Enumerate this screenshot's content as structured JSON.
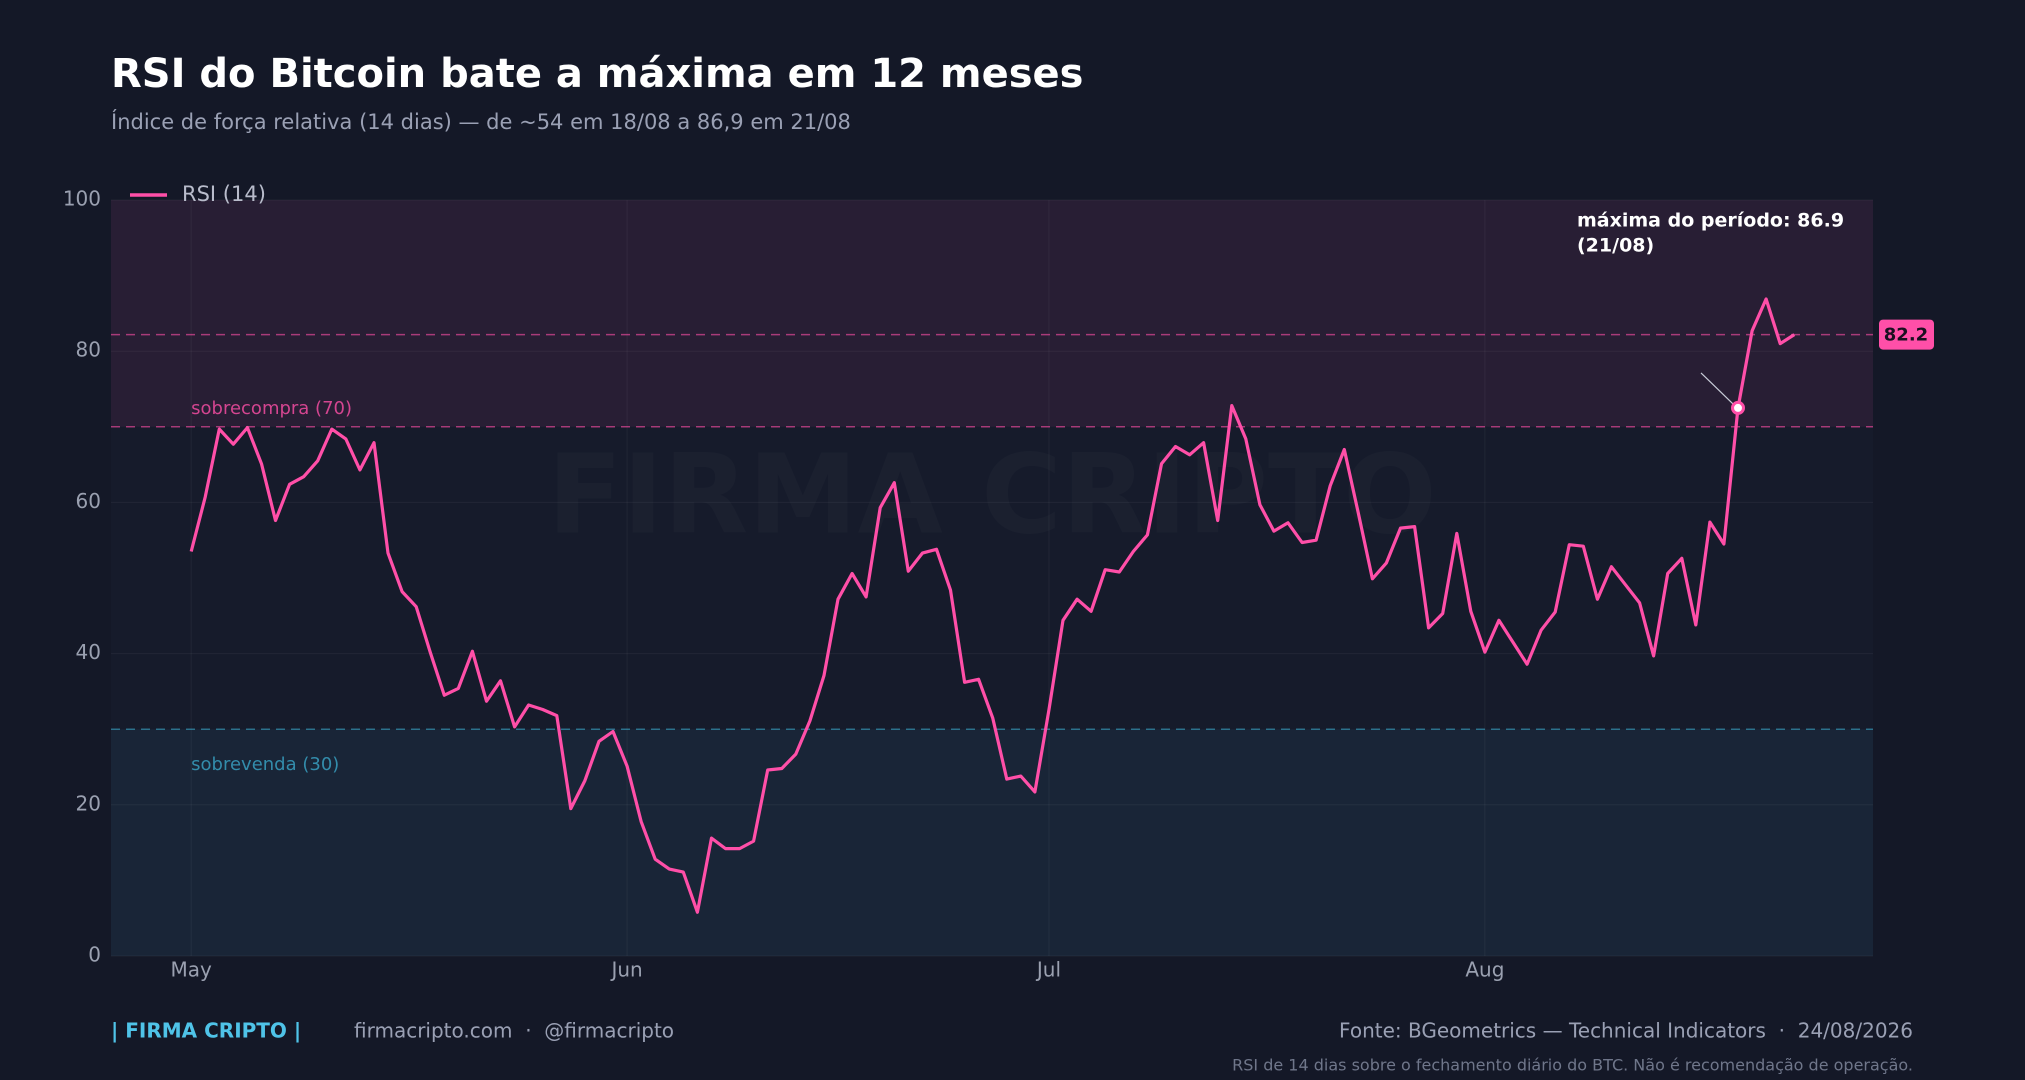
{
  "chart_data": {
    "type": "line",
    "title": "RSI do Bitcoin bate a máxima em 12 meses",
    "subtitle": "Índice de força relativa (14 dias) — de ~54 em 18/08 a 86,9 em 21/08",
    "watermark": "FIRMA CRIPTO",
    "series": [
      {
        "name": "RSI (14)",
        "color": "#ff4fa8",
        "values": [
          53.5,
          60.7,
          69.7,
          67.7,
          69.9,
          65.1,
          57.6,
          62.4,
          63.4,
          65.5,
          69.7,
          68.4,
          64.3,
          67.9,
          53.3,
          48.2,
          46.2,
          40.2,
          34.5,
          35.4,
          40.3,
          33.7,
          36.4,
          30.3,
          33.2,
          32.6,
          31.8,
          19.5,
          23.2,
          28.4,
          29.7,
          25.1,
          17.8,
          12.8,
          11.5,
          11.1,
          5.8,
          15.6,
          14.2,
          14.2,
          15.2,
          24.6,
          24.8,
          26.7,
          31.1,
          37.1,
          47.2,
          50.6,
          47.5,
          59.3,
          62.6,
          50.9,
          53.3,
          53.8,
          48.4,
          36.2,
          36.6,
          31.5,
          23.4,
          23.8,
          21.7,
          32.6,
          44.4,
          47.2,
          45.6,
          51.1,
          50.8,
          53.5,
          55.7,
          65.1,
          67.4,
          66.3,
          67.9,
          57.6,
          72.8,
          68.4,
          59.7,
          56.2,
          57.3,
          54.7,
          55.0,
          62.2,
          67.0,
          58.6,
          49.9,
          52.0,
          56.6,
          56.8,
          43.4,
          45.3,
          55.9,
          45.6,
          40.2,
          44.4,
          41.5,
          38.6,
          43.1,
          45.5,
          54.4,
          54.2,
          47.2,
          51.5,
          49.1,
          46.7,
          39.7,
          50.6,
          52.6,
          43.8,
          57.4,
          54.5,
          72.5,
          82.7,
          86.9,
          81.0,
          82.2
        ]
      }
    ],
    "xlim": [
      -5.7,
      119.6
    ],
    "xticks": [
      {
        "value": 0,
        "label": "May"
      },
      {
        "value": 31,
        "label": "Jun"
      },
      {
        "value": 61,
        "label": "Jul"
      },
      {
        "value": 92,
        "label": "Aug"
      }
    ],
    "ylim": [
      0,
      100
    ],
    "yticks": [
      0,
      20,
      40,
      60,
      80,
      100
    ],
    "grid": true,
    "legend": "top-left",
    "zones": [
      {
        "label": "sobrecompra (70)",
        "from": 70,
        "to": 100,
        "color": "#ff4fa8"
      },
      {
        "label": "sobrevenda (30)",
        "from": 0,
        "to": 30,
        "color": "#3aa6c8"
      }
    ],
    "annotation": {
      "index": 110,
      "lines": [
        "máxima do período: 86.9",
        "(21/08)"
      ]
    }
  },
  "footer": {
    "brand": "| FIRMA CRIPTO |",
    "links": "firmacripto.com  ·  @firmacripto",
    "source": "Fonte: BGeometrics — Technical Indicators  ·  24/08/2026",
    "note": "RSI de 14 dias sobre o fechamento diário do BTC. Não é recomendação de operação."
  }
}
